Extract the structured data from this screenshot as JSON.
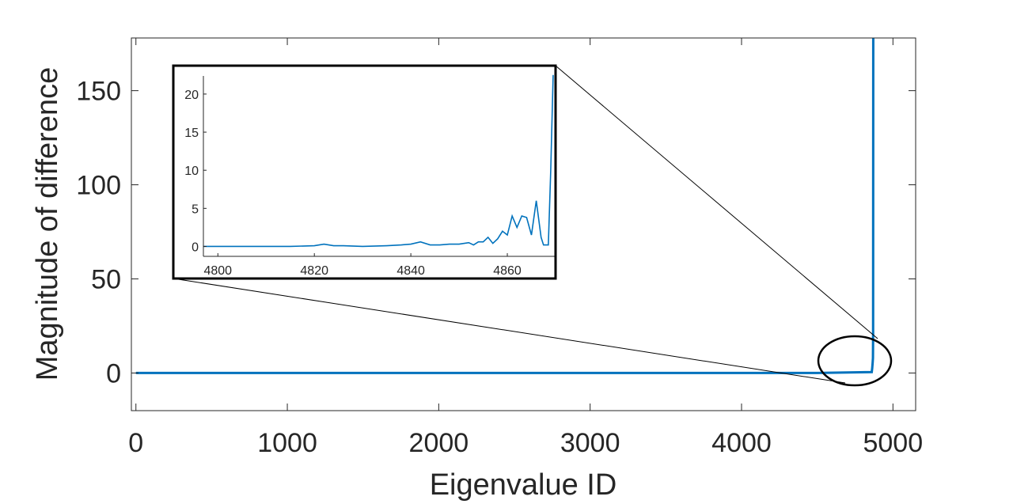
{
  "chart_data": [
    {
      "type": "line",
      "xlabel": "Eigenvalue ID",
      "ylabel": "Magnitude of difference",
      "xlim": [
        -30,
        5150
      ],
      "ylim": [
        -20,
        178
      ],
      "xticks": [
        0,
        1000,
        2000,
        3000,
        4000,
        5000
      ],
      "yticks": [
        0,
        50,
        100,
        150
      ],
      "xtick_labels": [
        "0",
        "1000",
        "2000",
        "3000",
        "4000",
        "5000"
      ],
      "ytick_labels": [
        "0",
        "50",
        "100",
        "150"
      ],
      "color": "#0072BD",
      "series": [
        {
          "x": [
            0,
            1000,
            2000,
            3000,
            4000,
            4500,
            4860,
            4863,
            4866,
            4868,
            4869,
            4870
          ],
          "y": [
            0,
            0,
            0,
            0,
            0,
            0,
            0.5,
            2.5,
            5.5,
            8,
            20,
            178
          ]
        }
      ],
      "annotations": [
        {
          "type": "ellipse",
          "center": [
            4775,
            5
          ],
          "note": "zoomed region"
        }
      ]
    },
    {
      "type": "line",
      "xlim": [
        4797,
        4870
      ],
      "ylim": [
        -1.3,
        23
      ],
      "xticks": [
        4800,
        4820,
        4840,
        4860
      ],
      "yticks": [
        0,
        5,
        10,
        15,
        20
      ],
      "xtick_labels": [
        "4800",
        "4820",
        "4840",
        "4860"
      ],
      "ytick_labels": [
        "0",
        "5",
        "10",
        "15",
        "20"
      ],
      "color": "#0072BD",
      "series": [
        {
          "x": [
            4797,
            4805,
            4815,
            4820,
            4822,
            4824,
            4826,
            4830,
            4835,
            4838,
            4840,
            4842,
            4844,
            4846,
            4848,
            4850,
            4852,
            4853,
            4854,
            4855,
            4856,
            4857,
            4858,
            4859,
            4860,
            4861,
            4862,
            4863,
            4864,
            4865,
            4866,
            4867,
            4867.5,
            4868,
            4868.5,
            4869,
            4869.5
          ],
          "y": [
            0,
            0,
            0,
            0.1,
            0.3,
            0.1,
            0.1,
            0,
            0.1,
            0.2,
            0.3,
            0.6,
            0.2,
            0.2,
            0.3,
            0.3,
            0.5,
            0.2,
            0.6,
            0.6,
            1.2,
            0.4,
            1.0,
            2.0,
            1.5,
            4.0,
            2.5,
            4.0,
            3.8,
            1.5,
            6.0,
            1.2,
            0.2,
            0.2,
            0.2,
            10.0,
            22.5
          ]
        }
      ]
    }
  ]
}
